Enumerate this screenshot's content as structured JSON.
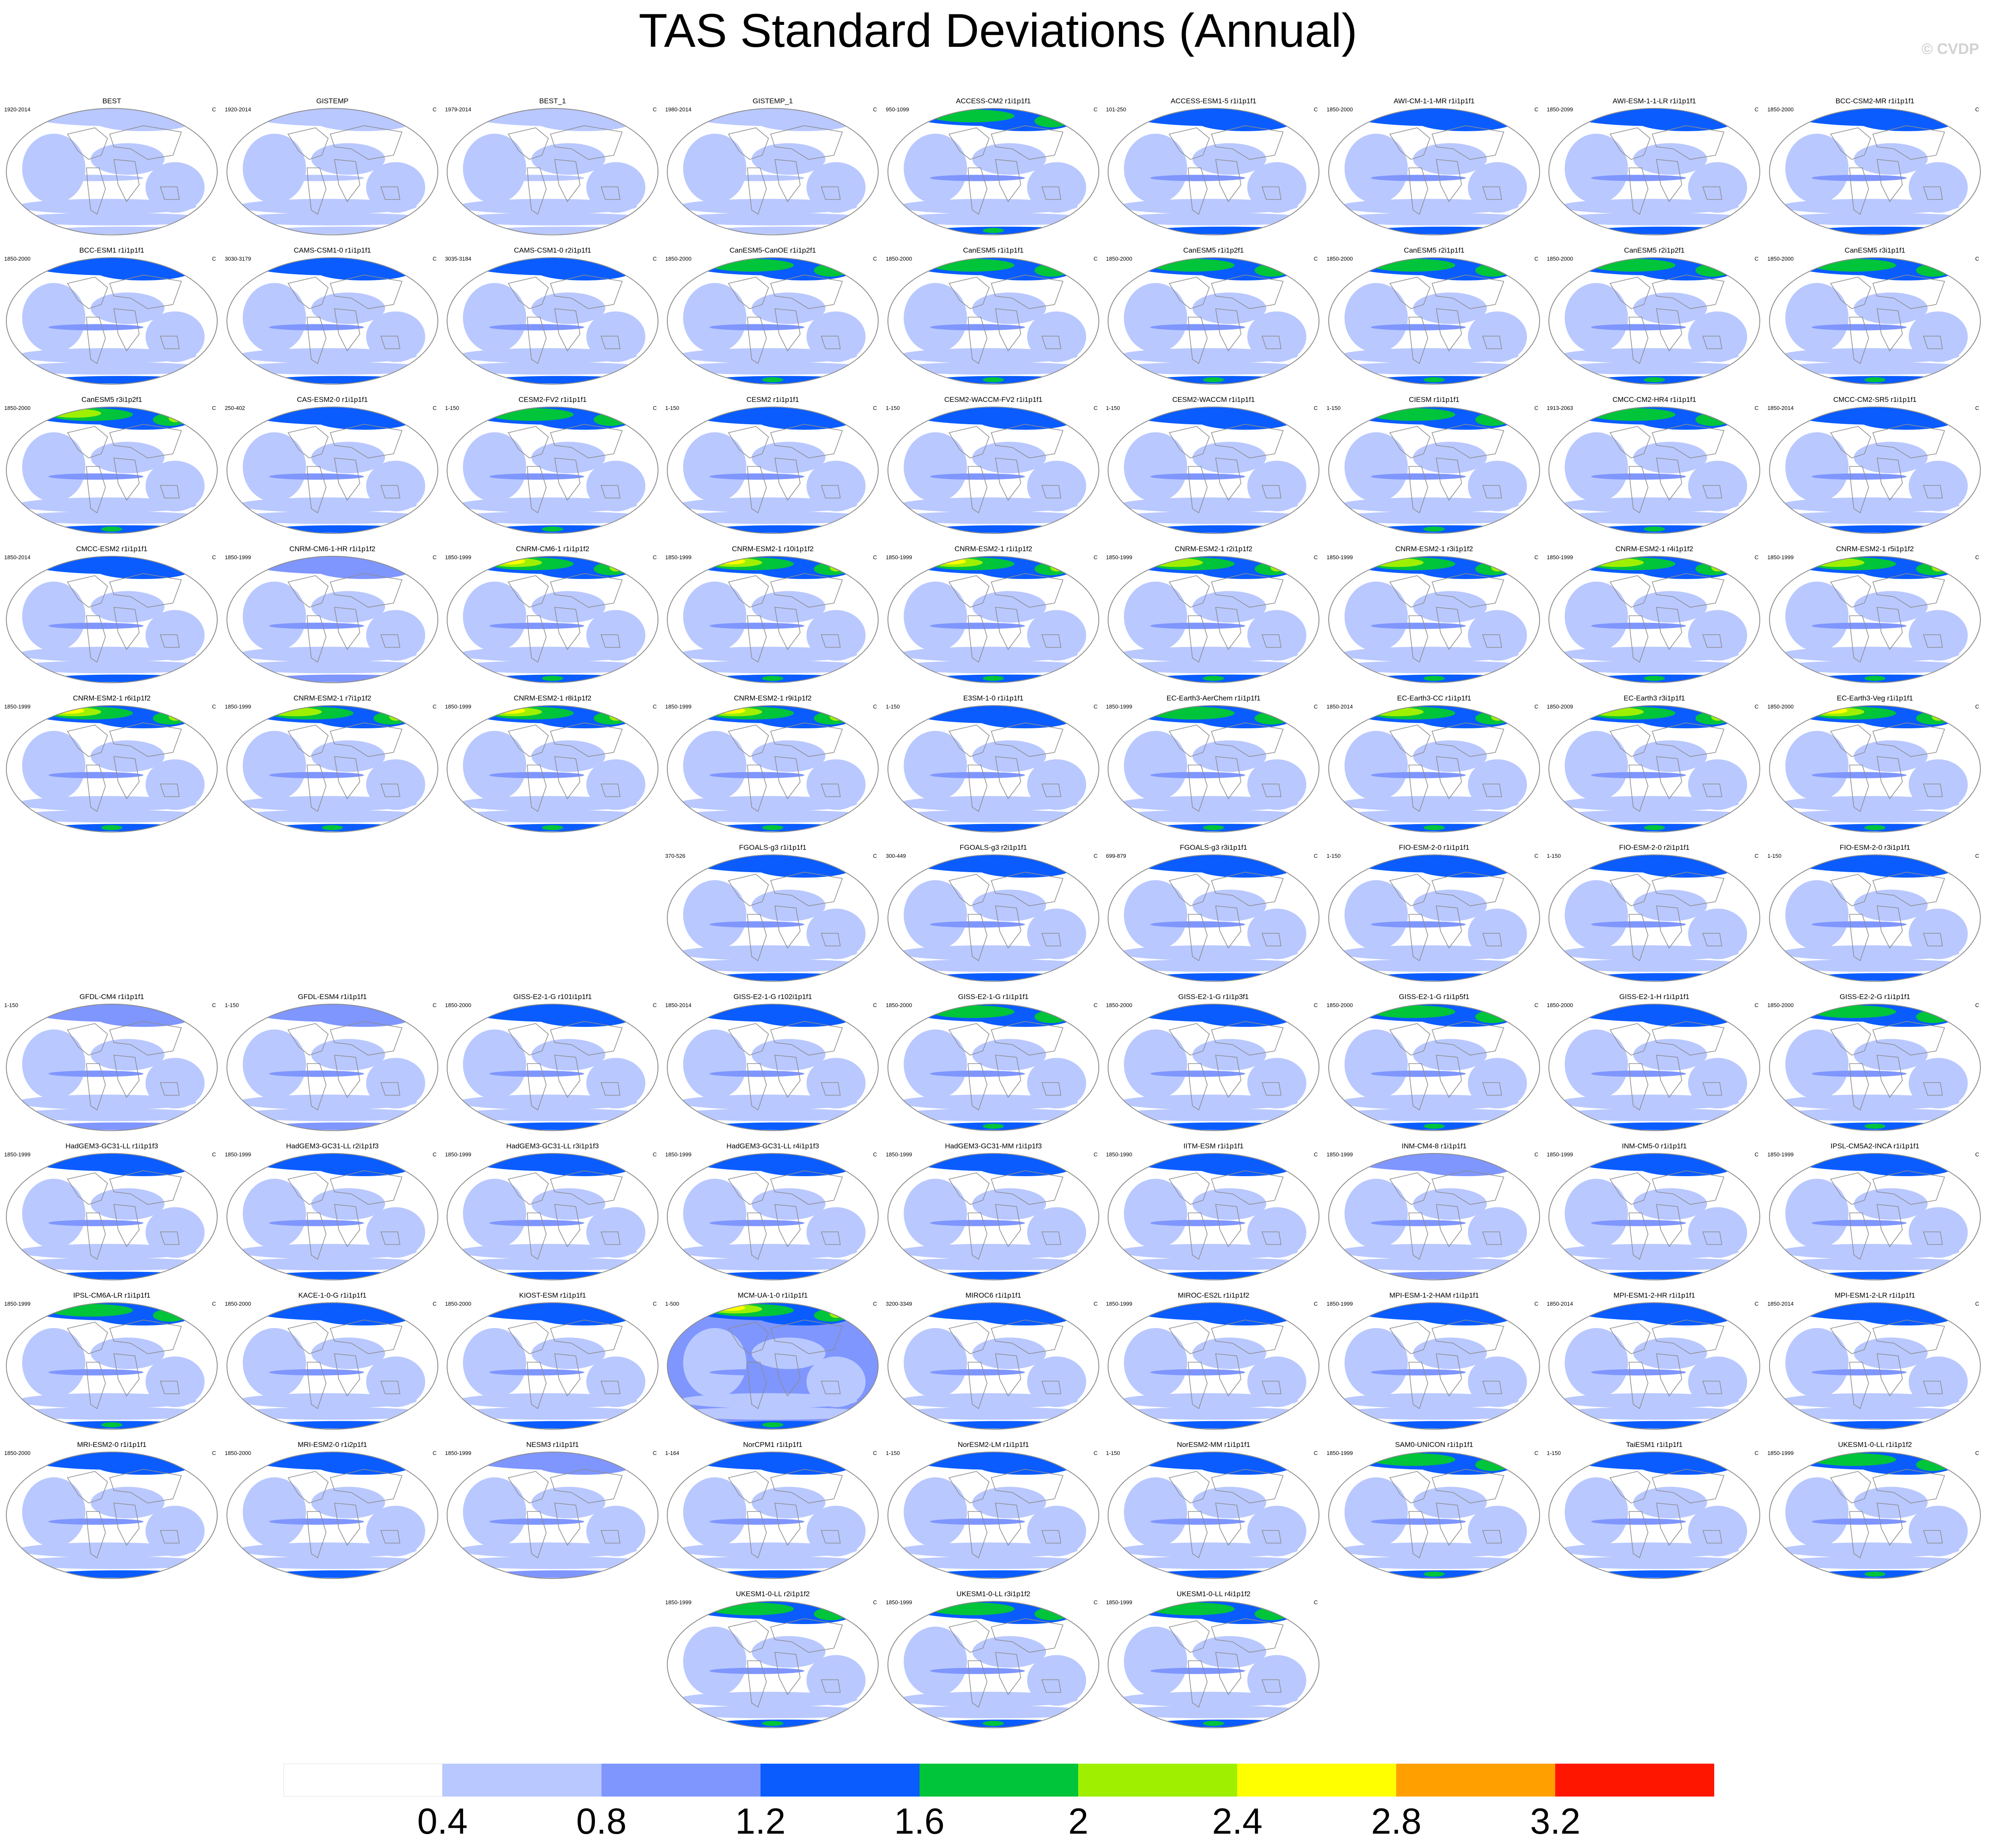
{
  "title": "TAS Standard Deviations (Annual)",
  "watermark": "© CVDP",
  "chart_data": {
    "type": "heatmap",
    "title": "TAS Standard Deviations (Annual)",
    "units": "C",
    "projection": "global map panels, one per dataset/model member",
    "colorbar": {
      "levels": [
        0.4,
        0.8,
        1.2,
        1.6,
        2,
        2.4,
        2.8,
        3.2
      ],
      "tick_labels": [
        "0.4",
        "0.8",
        "1.2",
        "1.6",
        "2",
        "2.4",
        "2.8",
        "3.2"
      ],
      "colors": [
        "#ffffff",
        "#b9c8ff",
        "#7f96ff",
        "#0a5cff",
        "#00c43a",
        "#9ef000",
        "#ffff00",
        "#ffa000",
        "#ff1600"
      ]
    },
    "panels": [
      {
        "name": "BEST",
        "period": "1920-2014",
        "unit": "C",
        "row": 0,
        "col": 0,
        "level": 1
      },
      {
        "name": "GISTEMP",
        "period": "1920-2014",
        "unit": "C",
        "row": 0,
        "col": 1,
        "level": 1
      },
      {
        "name": "BEST_1",
        "period": "1979-2014",
        "unit": "C",
        "row": 0,
        "col": 2,
        "level": 1
      },
      {
        "name": "GISTEMP_1",
        "period": "1980-2014",
        "unit": "C",
        "row": 0,
        "col": 3,
        "level": 1
      },
      {
        "name": "ACCESS-CM2 r1i1p1f1",
        "period": "950-1099",
        "unit": "C",
        "row": 0,
        "col": 4,
        "level": 4
      },
      {
        "name": "ACCESS-ESM1-5 r1i1p1f1",
        "period": "101-250",
        "unit": "C",
        "row": 0,
        "col": 5,
        "level": 3
      },
      {
        "name": "AWI-CM-1-1-MR r1i1p1f1",
        "period": "1850-2000",
        "unit": "C",
        "row": 0,
        "col": 6,
        "level": 3
      },
      {
        "name": "AWI-ESM-1-1-LR r1i1p1f1",
        "period": "1850-2099",
        "unit": "C",
        "row": 0,
        "col": 7,
        "level": 3
      },
      {
        "name": "BCC-CSM2-MR r1i1p1f1",
        "period": "1850-2000",
        "unit": "C",
        "row": 0,
        "col": 8,
        "level": 3,
        "south_hot": true
      },
      {
        "name": "BCC-ESM1 r1i1p1f1",
        "period": "1850-2000",
        "unit": "C",
        "row": 1,
        "col": 0,
        "level": 3,
        "south_hot": true
      },
      {
        "name": "CAMS-CSM1-0 r1i1p1f1",
        "period": "3030-3179",
        "unit": "C",
        "row": 1,
        "col": 1,
        "level": 3
      },
      {
        "name": "CAMS-CSM1-0 r2i1p1f1",
        "period": "3035-3184",
        "unit": "C",
        "row": 1,
        "col": 2,
        "level": 3
      },
      {
        "name": "CanESM5-CanOE r1i1p2f1",
        "period": "1850-2000",
        "unit": "C",
        "row": 1,
        "col": 3,
        "level": 4
      },
      {
        "name": "CanESM5 r1i1p1f1",
        "period": "1850-2000",
        "unit": "C",
        "row": 1,
        "col": 4,
        "level": 4
      },
      {
        "name": "CanESM5 r1i1p2f1",
        "period": "1850-2000",
        "unit": "C",
        "row": 1,
        "col": 5,
        "level": 4
      },
      {
        "name": "CanESM5 r2i1p1f1",
        "period": "1850-2000",
        "unit": "C",
        "row": 1,
        "col": 6,
        "level": 4
      },
      {
        "name": "CanESM5 r2i1p2f1",
        "period": "1850-2000",
        "unit": "C",
        "row": 1,
        "col": 7,
        "level": 4
      },
      {
        "name": "CanESM5 r3i1p1f1",
        "period": "1850-2000",
        "unit": "C",
        "row": 1,
        "col": 8,
        "level": 4
      },
      {
        "name": "CanESM5 r3i1p2f1",
        "period": "1850-2000",
        "unit": "C",
        "row": 2,
        "col": 0,
        "level": 5
      },
      {
        "name": "CAS-ESM2-0 r1i1p1f1",
        "period": "250-402",
        "unit": "C",
        "row": 2,
        "col": 1,
        "level": 3
      },
      {
        "name": "CESM2-FV2 r1i1p1f1",
        "period": "1-150",
        "unit": "C",
        "row": 2,
        "col": 2,
        "level": 4
      },
      {
        "name": "CESM2 r1i1p1f1",
        "period": "1-150",
        "unit": "C",
        "row": 2,
        "col": 3,
        "level": 3
      },
      {
        "name": "CESM2-WACCM-FV2 r1i1p1f1",
        "period": "1-150",
        "unit": "C",
        "row": 2,
        "col": 4,
        "level": 3
      },
      {
        "name": "CESM2-WACCM r1i1p1f1",
        "period": "1-150",
        "unit": "C",
        "row": 2,
        "col": 5,
        "level": 3
      },
      {
        "name": "CIESM r1i1p1f1",
        "period": "1-150",
        "unit": "C",
        "row": 2,
        "col": 6,
        "level": 4
      },
      {
        "name": "CMCC-CM2-HR4 r1i1p1f1",
        "period": "1913-2063",
        "unit": "C",
        "row": 2,
        "col": 7,
        "level": 4
      },
      {
        "name": "CMCC-CM2-SR5 r1i1p1f1",
        "period": "1850-2014",
        "unit": "C",
        "row": 2,
        "col": 8,
        "level": 3
      },
      {
        "name": "CMCC-ESM2 r1i1p1f1",
        "period": "1850-2014",
        "unit": "C",
        "row": 3,
        "col": 0,
        "level": 3
      },
      {
        "name": "CNRM-CM6-1-HR r1i1p1f2",
        "period": "1850-1999",
        "unit": "C",
        "row": 3,
        "col": 1,
        "level": 2
      },
      {
        "name": "CNRM-CM6-1 r1i1p1f2",
        "period": "1850-1999",
        "unit": "C",
        "row": 3,
        "col": 2,
        "level": 6
      },
      {
        "name": "CNRM-ESM2-1 r10i1p1f2",
        "period": "1850-1999",
        "unit": "C",
        "row": 3,
        "col": 3,
        "level": 6
      },
      {
        "name": "CNRM-ESM2-1 r1i1p1f2",
        "period": "1850-1999",
        "unit": "C",
        "row": 3,
        "col": 4,
        "level": 6
      },
      {
        "name": "CNRM-ESM2-1 r2i1p1f2",
        "period": "1850-1999",
        "unit": "C",
        "row": 3,
        "col": 5,
        "level": 5
      },
      {
        "name": "CNRM-ESM2-1 r3i1p1f2",
        "period": "1850-1999",
        "unit": "C",
        "row": 3,
        "col": 6,
        "level": 5
      },
      {
        "name": "CNRM-ESM2-1 r4i1p1f2",
        "period": "1850-1999",
        "unit": "C",
        "row": 3,
        "col": 7,
        "level": 5
      },
      {
        "name": "CNRM-ESM2-1 r5i1p1f2",
        "period": "1850-1999",
        "unit": "C",
        "row": 3,
        "col": 8,
        "level": 5
      },
      {
        "name": "CNRM-ESM2-1 r6i1p1f2",
        "period": "1850-1999",
        "unit": "C",
        "row": 4,
        "col": 0,
        "level": 6
      },
      {
        "name": "CNRM-ESM2-1 r7i1p1f2",
        "period": "1850-1999",
        "unit": "C",
        "row": 4,
        "col": 1,
        "level": 5
      },
      {
        "name": "CNRM-ESM2-1 r8i1p1f2",
        "period": "1850-1999",
        "unit": "C",
        "row": 4,
        "col": 2,
        "level": 6
      },
      {
        "name": "CNRM-ESM2-1 r9i1p1f2",
        "period": "1850-1999",
        "unit": "C",
        "row": 4,
        "col": 3,
        "level": 6
      },
      {
        "name": "E3SM-1-0 r1i1p1f1",
        "period": "1-150",
        "unit": "C",
        "row": 4,
        "col": 4,
        "level": 3
      },
      {
        "name": "EC-Earth3-AerChem r1i1p1f1",
        "period": "1850-1999",
        "unit": "C",
        "row": 4,
        "col": 5,
        "level": 4
      },
      {
        "name": "EC-Earth3-CC r1i1p1f1",
        "period": "1850-2014",
        "unit": "C",
        "row": 4,
        "col": 6,
        "level": 5
      },
      {
        "name": "EC-Earth3 r3i1p1f1",
        "period": "1850-2009",
        "unit": "C",
        "row": 4,
        "col": 7,
        "level": 5
      },
      {
        "name": "EC-Earth3-Veg r1i1p1f1",
        "period": "1850-2000",
        "unit": "C",
        "row": 4,
        "col": 8,
        "level": 6
      },
      {
        "name": "FGOALS-g3 r1i1p1f1",
        "period": "370-526",
        "unit": "C",
        "row": 5,
        "col": 3,
        "level": 3
      },
      {
        "name": "FGOALS-g3 r2i1p1f1",
        "period": "300-449",
        "unit": "C",
        "row": 5,
        "col": 4,
        "level": 3
      },
      {
        "name": "FGOALS-g3 r3i1p1f1",
        "period": "699-879",
        "unit": "C",
        "row": 5,
        "col": 5,
        "level": 3
      },
      {
        "name": "FIO-ESM-2-0 r1i1p1f1",
        "period": "1-150",
        "unit": "C",
        "row": 5,
        "col": 6,
        "level": 3
      },
      {
        "name": "FIO-ESM-2-0 r2i1p1f1",
        "period": "1-150",
        "unit": "C",
        "row": 5,
        "col": 7,
        "level": 3
      },
      {
        "name": "FIO-ESM-2-0 r3i1p1f1",
        "period": "1-150",
        "unit": "C",
        "row": 5,
        "col": 8,
        "level": 3
      },
      {
        "name": "GFDL-CM4 r1i1p1f1",
        "period": "1-150",
        "unit": "C",
        "row": 6,
        "col": 0,
        "level": 2
      },
      {
        "name": "GFDL-ESM4 r1i1p1f1",
        "period": "1-150",
        "unit": "C",
        "row": 6,
        "col": 1,
        "level": 2
      },
      {
        "name": "GISS-E2-1-G r101i1p1f1",
        "period": "1850-2000",
        "unit": "C",
        "row": 6,
        "col": 2,
        "level": 3
      },
      {
        "name": "GISS-E2-1-G r102i1p1f1",
        "period": "1850-2014",
        "unit": "C",
        "row": 6,
        "col": 3,
        "level": 3
      },
      {
        "name": "GISS-E2-1-G r1i1p1f1",
        "period": "1850-2000",
        "unit": "C",
        "row": 6,
        "col": 4,
        "level": 4
      },
      {
        "name": "GISS-E2-1-G r1i1p3f1",
        "period": "1850-2000",
        "unit": "C",
        "row": 6,
        "col": 5,
        "level": 3
      },
      {
        "name": "GISS-E2-1-G r1i1p5f1",
        "period": "1850-2000",
        "unit": "C",
        "row": 6,
        "col": 6,
        "level": 4
      },
      {
        "name": "GISS-E2-1-H r1i1p1f1",
        "period": "1850-2000",
        "unit": "C",
        "row": 6,
        "col": 7,
        "level": 3
      },
      {
        "name": "GISS-E2-2-G r1i1p1f1",
        "period": "1850-2000",
        "unit": "C",
        "row": 6,
        "col": 8,
        "level": 4
      },
      {
        "name": "HadGEM3-GC31-LL r1i1p1f3",
        "period": "1850-1999",
        "unit": "C",
        "row": 7,
        "col": 0,
        "level": 3
      },
      {
        "name": "HadGEM3-GC31-LL r2i1p1f3",
        "period": "1850-1999",
        "unit": "C",
        "row": 7,
        "col": 1,
        "level": 3
      },
      {
        "name": "HadGEM3-GC31-LL r3i1p1f3",
        "period": "1850-1999",
        "unit": "C",
        "row": 7,
        "col": 2,
        "level": 3
      },
      {
        "name": "HadGEM3-GC31-LL r4i1p1f3",
        "period": "1850-1999",
        "unit": "C",
        "row": 7,
        "col": 3,
        "level": 3
      },
      {
        "name": "HadGEM3-GC31-MM r1i1p1f3",
        "period": "1850-1999",
        "unit": "C",
        "row": 7,
        "col": 4,
        "level": 3
      },
      {
        "name": "IITM-ESM r1i1p1f1",
        "period": "1850-1990",
        "unit": "C",
        "row": 7,
        "col": 5,
        "level": 3
      },
      {
        "name": "INM-CM4-8 r1i1p1f1",
        "period": "1850-1999",
        "unit": "C",
        "row": 7,
        "col": 6,
        "level": 2
      },
      {
        "name": "INM-CM5-0 r1i1p1f1",
        "period": "1850-1999",
        "unit": "C",
        "row": 7,
        "col": 7,
        "level": 3
      },
      {
        "name": "IPSL-CM5A2-INCA r1i1p1f1",
        "period": "1850-1999",
        "unit": "C",
        "row": 7,
        "col": 8,
        "level": 3
      },
      {
        "name": "IPSL-CM6A-LR r1i1p1f1",
        "period": "1850-1999",
        "unit": "C",
        "row": 8,
        "col": 0,
        "level": 4
      },
      {
        "name": "KACE-1-0-G r1i1p1f1",
        "period": "1850-2000",
        "unit": "C",
        "row": 8,
        "col": 1,
        "level": 3
      },
      {
        "name": "KIOST-ESM r1i1p1f1",
        "period": "1850-2000",
        "unit": "C",
        "row": 8,
        "col": 2,
        "level": 3
      },
      {
        "name": "MCM-UA-1-0 r1i1p1f1",
        "period": "1-500",
        "unit": "C",
        "row": 8,
        "col": 3,
        "level": 6,
        "filled": true
      },
      {
        "name": "MIROC6 r1i1p1f1",
        "period": "3200-3349",
        "unit": "C",
        "row": 8,
        "col": 4,
        "level": 3
      },
      {
        "name": "MIROC-ES2L r1i1p1f2",
        "period": "1850-1999",
        "unit": "C",
        "row": 8,
        "col": 5,
        "level": 3
      },
      {
        "name": "MPI-ESM-1-2-HAM r1i1p1f1",
        "period": "1850-1999",
        "unit": "C",
        "row": 8,
        "col": 6,
        "level": 3
      },
      {
        "name": "MPI-ESM1-2-HR r1i1p1f1",
        "period": "1850-2014",
        "unit": "C",
        "row": 8,
        "col": 7,
        "level": 3
      },
      {
        "name": "MPI-ESM1-2-LR r1i1p1f1",
        "period": "1850-2014",
        "unit": "C",
        "row": 8,
        "col": 8,
        "level": 3
      },
      {
        "name": "MRI-ESM2-0 r1i1p1f1",
        "period": "1850-2000",
        "unit": "C",
        "row": 9,
        "col": 0,
        "level": 3
      },
      {
        "name": "MRI-ESM2-0 r1i2p1f1",
        "period": "1850-2000",
        "unit": "C",
        "row": 9,
        "col": 1,
        "level": 3
      },
      {
        "name": "NESM3 r1i1p1f1",
        "period": "1850-1999",
        "unit": "C",
        "row": 9,
        "col": 2,
        "level": 2
      },
      {
        "name": "NorCPM1 r1i1p1f1",
        "period": "1-164",
        "unit": "C",
        "row": 9,
        "col": 3,
        "level": 3
      },
      {
        "name": "NorESM2-LM r1i1p1f1",
        "period": "1-150",
        "unit": "C",
        "row": 9,
        "col": 4,
        "level": 3
      },
      {
        "name": "NorESM2-MM r1i1p1f1",
        "period": "1-150",
        "unit": "C",
        "row": 9,
        "col": 5,
        "level": 3
      },
      {
        "name": "SAM0-UNICON r1i1p1f1",
        "period": "1850-1999",
        "unit": "C",
        "row": 9,
        "col": 6,
        "level": 4
      },
      {
        "name": "TaiESM1 r1i1p1f1",
        "period": "1-150",
        "unit": "C",
        "row": 9,
        "col": 7,
        "level": 3
      },
      {
        "name": "UKESM1-0-LL r1i1p1f2",
        "period": "1850-1999",
        "unit": "C",
        "row": 9,
        "col": 8,
        "level": 4
      },
      {
        "name": "UKESM1-0-LL r2i1p1f2",
        "period": "1850-1999",
        "unit": "C",
        "row": 10,
        "col": 3,
        "level": 4
      },
      {
        "name": "UKESM1-0-LL r3i1p1f2",
        "period": "1850-1999",
        "unit": "C",
        "row": 10,
        "col": 4,
        "level": 4
      },
      {
        "name": "UKESM1-0-LL r4i1p1f2",
        "period": "1850-1999",
        "unit": "C",
        "row": 10,
        "col": 5,
        "level": 4
      }
    ]
  }
}
